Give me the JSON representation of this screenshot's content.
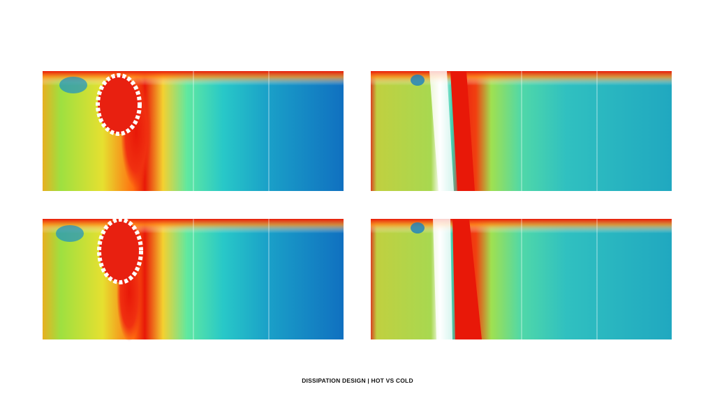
{
  "caption": "DISSIPATION DESIGN | HOT VS COLD"
}
